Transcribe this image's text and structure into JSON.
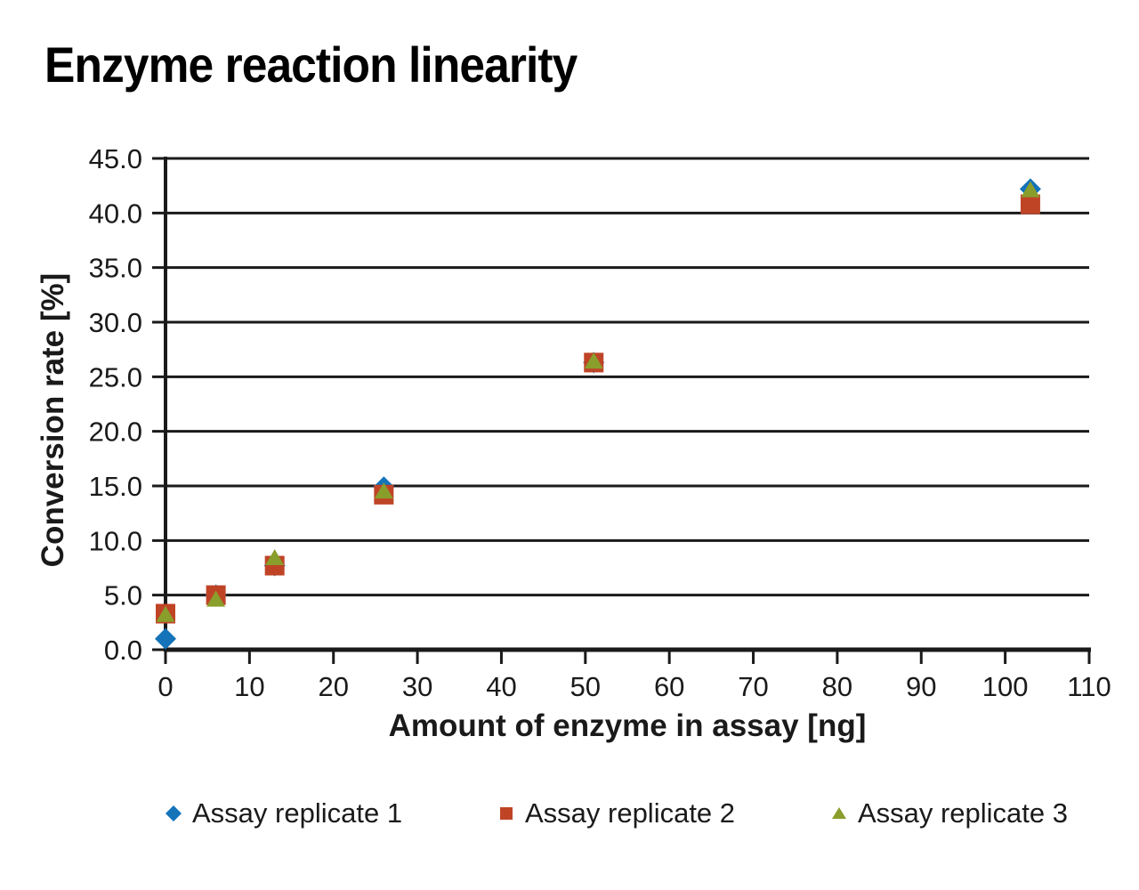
{
  "chart_data": {
    "type": "scatter",
    "title": "Enzyme reaction linearity",
    "xlabel": "Amount of enzyme in assay [ng]",
    "ylabel": "Conversion rate [%]",
    "xlim": [
      0,
      110
    ],
    "ylim": [
      0,
      45
    ],
    "xtick_step": 10,
    "ytick_step": 5,
    "xtick_labels": [
      "0",
      "10",
      "20",
      "30",
      "40",
      "50",
      "60",
      "70",
      "80",
      "90",
      "100",
      "110"
    ],
    "ytick_labels": [
      "0.0",
      "5.0",
      "10.0",
      "15.0",
      "20.0",
      "25.0",
      "30.0",
      "35.0",
      "40.0",
      "45.0"
    ],
    "grid": "horizontal-only",
    "legend_position": "bottom",
    "axis_color": "#1a1a1a",
    "x": [
      0,
      6,
      13,
      26,
      51,
      103
    ],
    "series": [
      {
        "name": "Assay replicate 1",
        "marker": "diamond",
        "color": "#1473b9",
        "values": [
          1.0,
          5.0,
          7.7,
          14.9,
          26.3,
          42.2
        ]
      },
      {
        "name": "Assay replicate 2",
        "marker": "square",
        "color": "#bf4426",
        "values": [
          3.3,
          5.0,
          7.7,
          14.2,
          26.3,
          40.8
        ]
      },
      {
        "name": "Assay replicate 3",
        "marker": "triangle",
        "color": "#8a9e2c",
        "values": [
          3.2,
          4.6,
          8.4,
          14.5,
          26.4,
          42.1
        ]
      }
    ]
  }
}
